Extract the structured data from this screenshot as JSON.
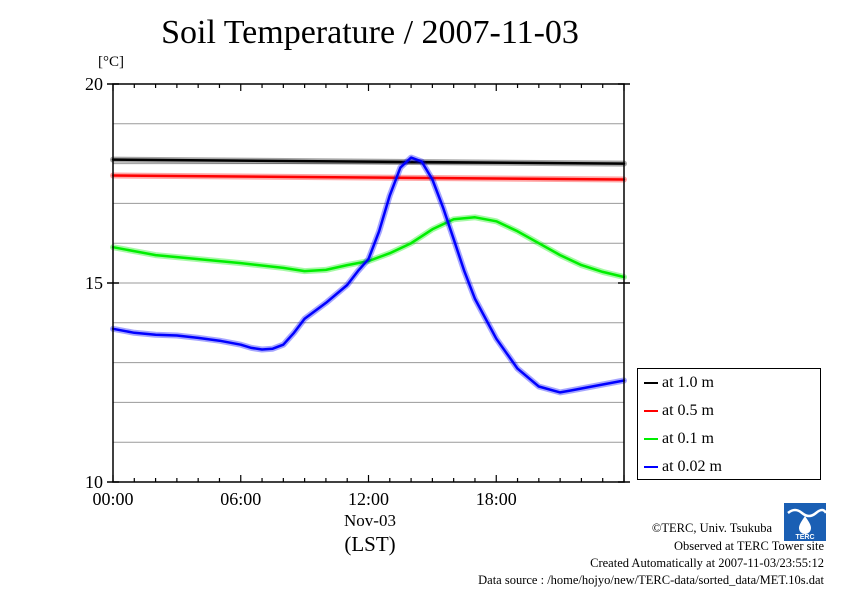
{
  "title": "Soil Temperature / 2007-11-03",
  "unit": "[°C]",
  "xaxis": {
    "date": "Nov-03",
    "label": "(LST)"
  },
  "footer": {
    "copyright": "©TERC, Univ. Tsukuba",
    "site": "Observed at TERC Tower site",
    "created": "Created Automatically at 2007-11-03/23:55:12",
    "source": "Data source : /home/hojyo/new/TERC-data/sorted_data/MET.10s.dat"
  },
  "logo": {
    "icon": "terc-logo-icon",
    "text": "TERC"
  },
  "chart_data": {
    "type": "line",
    "title": "Soil Temperature / 2007-11-03",
    "ylabel": "[°C]",
    "xlabel": "(LST)",
    "xlim": [
      0,
      24
    ],
    "ylim": [
      10,
      20
    ],
    "x_ticks": [
      0,
      6,
      12,
      18
    ],
    "x_tick_labels": [
      "00:00",
      "06:00",
      "12:00",
      "18:00"
    ],
    "y_ticks": [
      10,
      15,
      20
    ],
    "y_tick_labels": [
      "10",
      "15",
      "20"
    ],
    "grid": true,
    "legend_position": "right",
    "series": [
      {
        "name": "at 1.0 m",
        "color": "#000000",
        "x": [
          0,
          24
        ],
        "y": [
          18.1,
          18.0
        ]
      },
      {
        "name": "at 0.5 m",
        "color": "#ff0000",
        "x": [
          0,
          24
        ],
        "y": [
          17.7,
          17.6
        ]
      },
      {
        "name": "at 0.1 m",
        "color": "#00ee00",
        "x": [
          0,
          2,
          4,
          6,
          8,
          9,
          10,
          11,
          12,
          13,
          14,
          15,
          16,
          17,
          18,
          19,
          20,
          21,
          22,
          23,
          24
        ],
        "y": [
          15.9,
          15.7,
          15.6,
          15.5,
          15.38,
          15.3,
          15.33,
          15.45,
          15.55,
          15.75,
          16.0,
          16.35,
          16.6,
          16.65,
          16.55,
          16.3,
          16.0,
          15.7,
          15.45,
          15.28,
          15.15
        ]
      },
      {
        "name": "at 0.02 m",
        "color": "#0000ff",
        "x": [
          0,
          1,
          2,
          3,
          4,
          5,
          6,
          6.5,
          7,
          7.5,
          8,
          8.5,
          9,
          10,
          11,
          11.5,
          12,
          12.5,
          13,
          13.5,
          14,
          14.5,
          15,
          15.5,
          16,
          16.5,
          17,
          18,
          19,
          20,
          21,
          21.5,
          22,
          23,
          24
        ],
        "y": [
          13.85,
          13.75,
          13.7,
          13.68,
          13.62,
          13.55,
          13.45,
          13.37,
          13.33,
          13.35,
          13.45,
          13.75,
          14.1,
          14.5,
          14.95,
          15.3,
          15.6,
          16.3,
          17.2,
          17.9,
          18.15,
          18.05,
          17.6,
          16.9,
          16.1,
          15.3,
          14.6,
          13.6,
          12.85,
          12.4,
          12.25,
          12.3,
          12.35,
          12.45,
          12.55
        ]
      }
    ]
  }
}
